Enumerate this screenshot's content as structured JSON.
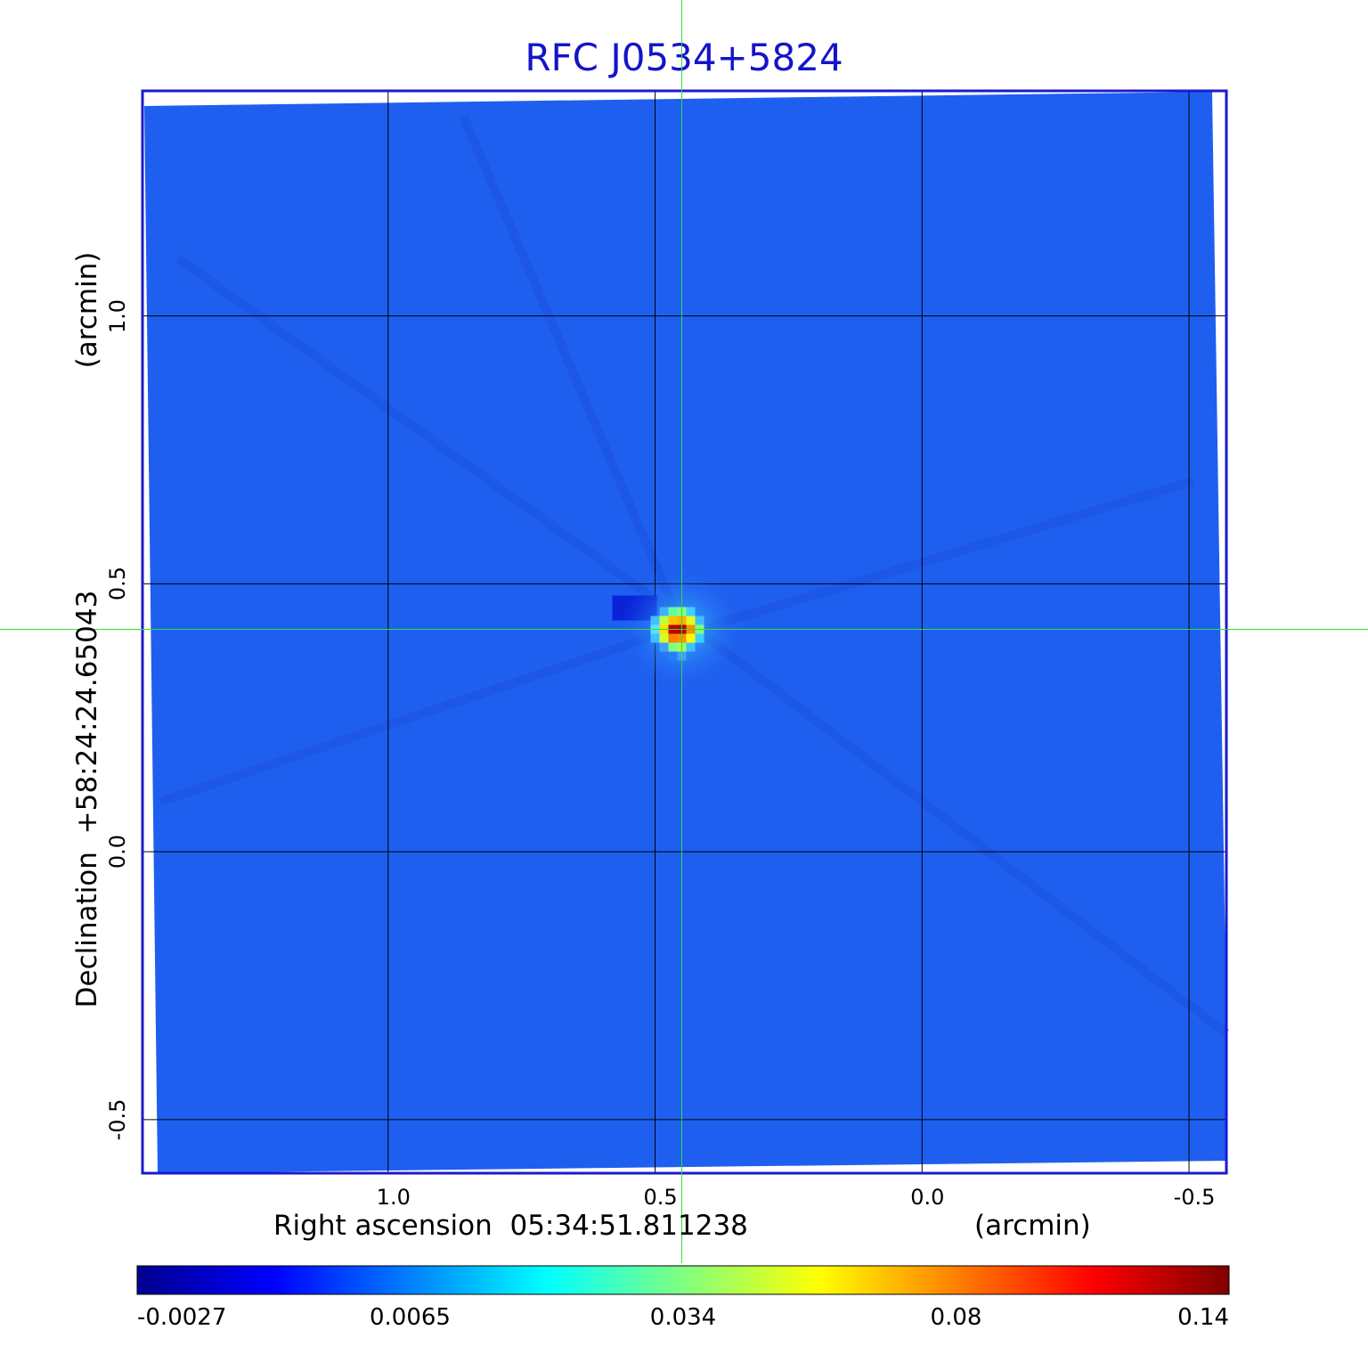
{
  "chart_data": {
    "type": "heatmap",
    "title": "RFC J0534+5824",
    "xlabel": "Right ascension  05:34:51.811238",
    "xunit": "(arcmin)",
    "ylabel": "Declination  +58:24:24.65043",
    "yunit": "(arcmin)",
    "x_axis_reversed": true,
    "xlim": [
      1.46,
      -0.57
    ],
    "ylim": [
      -0.6,
      1.42
    ],
    "x_ticks": [
      {
        "value": 1.0,
        "label": "1.0"
      },
      {
        "value": 0.5,
        "label": "0.5"
      },
      {
        "value": 0.0,
        "label": "0.0"
      },
      {
        "value": -0.5,
        "label": "-0.5"
      }
    ],
    "y_ticks": [
      {
        "value": 1.0,
        "label": "1.0"
      },
      {
        "value": 0.5,
        "label": "0.5"
      },
      {
        "value": 0.0,
        "label": "0.0"
      },
      {
        "value": -0.5,
        "label": "-0.5"
      }
    ],
    "grid": true,
    "crosshair": {
      "x": 0.45,
      "y": 0.415,
      "color": "#33dd33"
    },
    "source_peak": {
      "x": 0.45,
      "y": 0.415,
      "value": 0.14
    },
    "background_level": 0.0013,
    "colormap": "jet",
    "colorbar": {
      "position": "bottom",
      "ticks": [
        {
          "value": -0.0027,
          "label": "-0.0027"
        },
        {
          "value": 0.0065,
          "label": "0.0065"
        },
        {
          "value": 0.034,
          "label": "0.034"
        },
        {
          "value": 0.08,
          "label": "0.08"
        },
        {
          "value": 0.14,
          "label": "0.14"
        }
      ],
      "colors": [
        "#00008f",
        "#0000ff",
        "#0080ff",
        "#00ffff",
        "#80ff80",
        "#ffff00",
        "#ff8000",
        "#ff0000",
        "#800000"
      ]
    },
    "colors": {
      "frame": "#1a1ad0",
      "background_fill": "#1f5ff0",
      "grid": "#000000",
      "title": "#1414c8"
    }
  }
}
